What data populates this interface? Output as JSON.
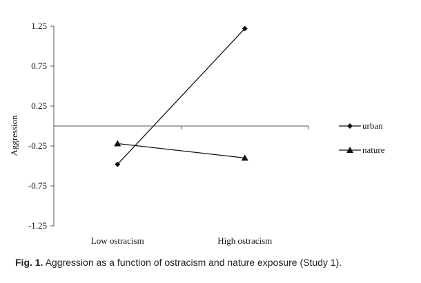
{
  "chart_data": {
    "type": "line",
    "categories": [
      "Low ostracism",
      "High ostracism"
    ],
    "series": [
      {
        "name": "urban",
        "values": [
          -0.48,
          1.22
        ],
        "marker": "diamond",
        "color": "#111111"
      },
      {
        "name": "nature",
        "values": [
          -0.22,
          -0.4
        ],
        "marker": "triangle",
        "color": "#111111"
      }
    ],
    "ylabel": "Aggression",
    "xlabel": "",
    "ylim": [
      -1.25,
      1.25
    ],
    "yticks": [
      "1.25",
      "0.75",
      "0.25",
      "-0.25",
      "-0.75",
      "-1.25"
    ],
    "x_axis_crosses_y": 0,
    "grid": false,
    "legend_position": "right"
  },
  "caption": {
    "label": "Fig. 1.",
    "text": "Aggression as a function of ostracism and nature exposure (Study 1)."
  }
}
